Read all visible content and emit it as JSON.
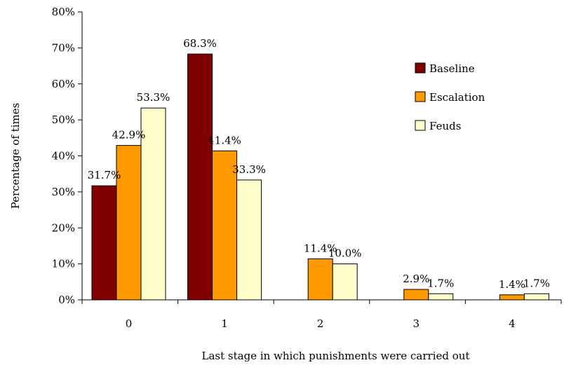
{
  "chart_data": {
    "type": "bar",
    "title": "",
    "xlabel": "Last stage in which punishments were carried out",
    "ylabel": "Percentage of times",
    "ylim": [
      0,
      80
    ],
    "y_ticks": [
      "0%",
      "10%",
      "20%",
      "30%",
      "40%",
      "50%",
      "60%",
      "70%",
      "80%"
    ],
    "categories": [
      "0",
      "1",
      "2",
      "3",
      "4"
    ],
    "legend_position": "right",
    "grid": false,
    "series": [
      {
        "name": "Baseline",
        "color": "#800000",
        "values": [
          31.7,
          68.3,
          0,
          0,
          0
        ],
        "labels": [
          "31.7%",
          "68.3%",
          "",
          "",
          ""
        ]
      },
      {
        "name": "Escalation",
        "color": "#FF9900",
        "values": [
          42.9,
          41.4,
          11.4,
          2.9,
          1.4
        ],
        "labels": [
          "42.9%",
          "41.4%",
          "11.4%",
          "2.9%",
          "1.4%"
        ]
      },
      {
        "name": "Feuds",
        "color": "#FFFFCC",
        "values": [
          53.3,
          33.3,
          10.0,
          1.7,
          1.7
        ],
        "labels": [
          "53.3%",
          "33.3%",
          "10.0%",
          "1.7%",
          "1.7%"
        ]
      }
    ]
  }
}
